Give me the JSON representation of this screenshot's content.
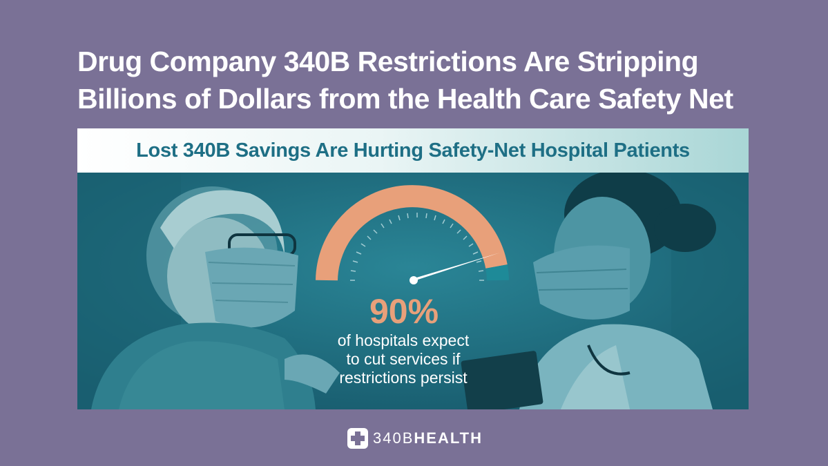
{
  "headline": {
    "line1": "Drug Company 340B Restrictions Are Stripping",
    "line2": "Billions of Dollars from the Health Care Safety Net"
  },
  "banner": {
    "title": "Lost 340B Savings Are Hurting Safety-Net Hospital Patients"
  },
  "gauge": {
    "value_percent": 90,
    "fill_color": "#e8a07a",
    "remainder_color": "#1e8a98",
    "needle_color": "#ffffff"
  },
  "stat": {
    "percent_label": "90%",
    "caption_line1": "of hospitals expect",
    "caption_line2": "to cut services if",
    "caption_line3": "restrictions persist"
  },
  "logo": {
    "icon": "medical-cross-icon",
    "text_light": "340B",
    "text_bold": "HEALTH"
  },
  "colors": {
    "page_background": "#7a7196",
    "photo_tint": "#1f6d80",
    "banner_text": "#1e6f85",
    "accent": "#e8a07a"
  }
}
